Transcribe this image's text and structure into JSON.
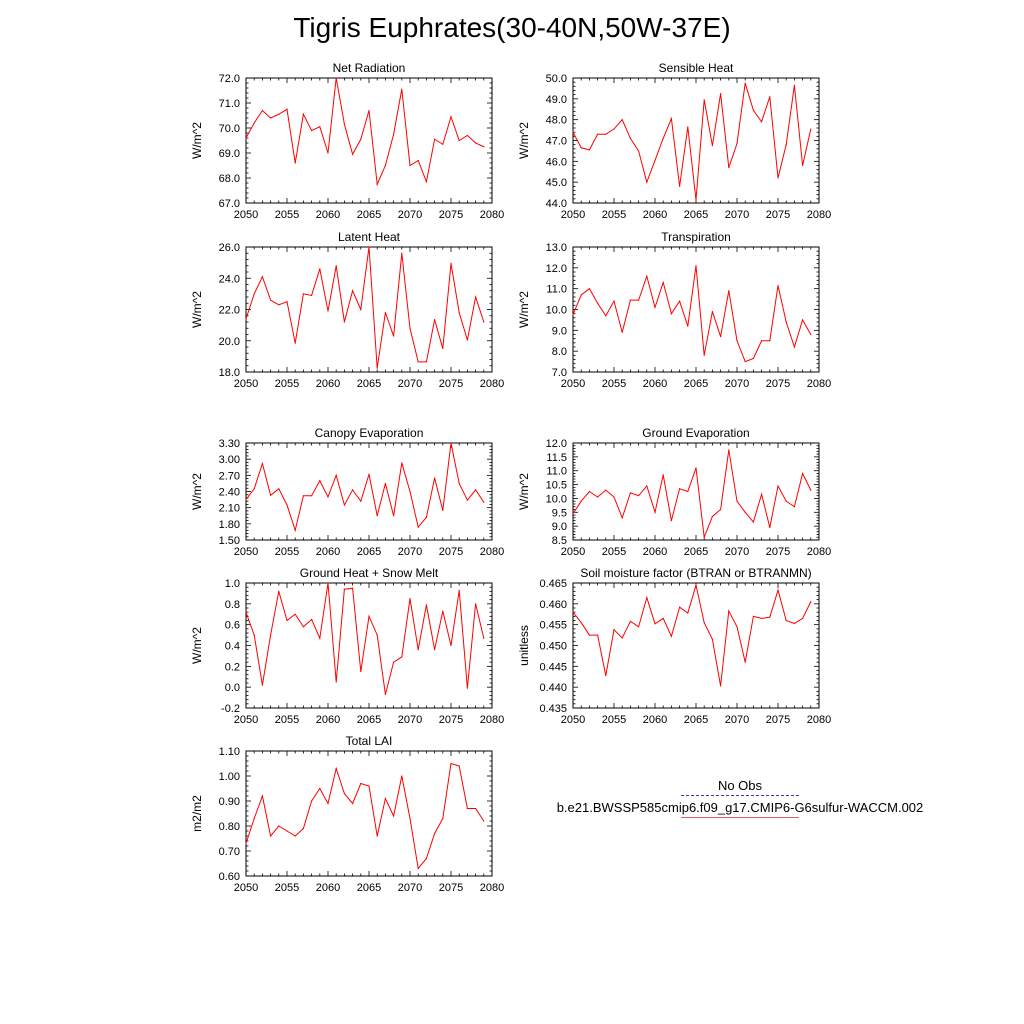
{
  "page": {
    "title": "Tigris Euphrates(30-40N,50W-37E)"
  },
  "legend": {
    "entries": [
      {
        "label": "No Obs",
        "color": "#3333aa",
        "style": "dashed"
      },
      {
        "label": "b.e21.BWSSP585cmip6.f09_g17.CMIP6-G6sulfur-WACCM.002",
        "color": "#ff0000",
        "style": "solid"
      }
    ]
  },
  "chart_data": [
    {
      "type": "line",
      "title": "Net Radiation",
      "xlabel": "",
      "ylabel": "W/m^2",
      "xlim": [
        2050,
        2080
      ],
      "ylim": [
        67.0,
        72.0
      ],
      "xticks": [
        2050,
        2055,
        2060,
        2065,
        2070,
        2075,
        2080
      ],
      "yticks": [
        67.0,
        68.0,
        69.0,
        70.0,
        71.0,
        72.0
      ],
      "decimals": 1,
      "x": [
        2050,
        2051,
        2052,
        2053,
        2054,
        2055,
        2056,
        2057,
        2058,
        2059,
        2060,
        2061,
        2062,
        2063,
        2064,
        2065,
        2066,
        2067,
        2068,
        2069,
        2070,
        2071,
        2072,
        2073,
        2074,
        2075,
        2076,
        2077,
        2078,
        2079
      ],
      "series": [
        {
          "color": "#ff0000",
          "values": [
            69.6,
            70.2,
            70.7,
            70.4,
            70.55,
            70.75,
            68.6,
            70.55,
            69.9,
            70.05,
            69.0,
            72.0,
            70.15,
            68.95,
            69.55,
            70.7,
            67.75,
            68.5,
            69.75,
            71.55,
            68.5,
            68.7,
            67.85,
            69.55,
            69.35,
            70.45,
            69.5,
            69.7,
            69.4,
            69.25
          ]
        }
      ]
    },
    {
      "type": "line",
      "title": "Sensible Heat",
      "xlabel": "",
      "ylabel": "W/m^2",
      "xlim": [
        2050,
        2080
      ],
      "ylim": [
        44.0,
        50.0
      ],
      "xticks": [
        2050,
        2055,
        2060,
        2065,
        2070,
        2075,
        2080
      ],
      "yticks": [
        44.0,
        45.0,
        46.0,
        47.0,
        48.0,
        49.0,
        50.0
      ],
      "decimals": 1,
      "x": [
        2050,
        2051,
        2052,
        2053,
        2054,
        2055,
        2056,
        2057,
        2058,
        2059,
        2060,
        2061,
        2062,
        2063,
        2064,
        2065,
        2066,
        2067,
        2068,
        2069,
        2070,
        2071,
        2072,
        2073,
        2074,
        2075,
        2076,
        2077,
        2078,
        2079
      ],
      "series": [
        {
          "color": "#ff0000",
          "values": [
            47.4,
            46.65,
            46.55,
            47.3,
            47.3,
            47.55,
            48.0,
            47.1,
            46.5,
            45.0,
            46.05,
            47.1,
            48.05,
            44.8,
            47.65,
            44.15,
            48.95,
            46.75,
            49.25,
            45.7,
            46.85,
            49.75,
            48.45,
            47.9,
            49.1,
            45.2,
            46.8,
            49.65,
            45.8,
            47.55
          ]
        }
      ]
    },
    {
      "type": "line",
      "title": "Latent Heat",
      "xlabel": "",
      "ylabel": "W/m^2",
      "xlim": [
        2050,
        2080
      ],
      "ylim": [
        18.0,
        26.0
      ],
      "xticks": [
        2050,
        2055,
        2060,
        2065,
        2070,
        2075,
        2080
      ],
      "yticks": [
        18.0,
        20.0,
        22.0,
        24.0,
        26.0
      ],
      "decimals": 1,
      "x": [
        2050,
        2051,
        2052,
        2053,
        2054,
        2055,
        2056,
        2057,
        2058,
        2059,
        2060,
        2061,
        2062,
        2063,
        2064,
        2065,
        2066,
        2067,
        2068,
        2069,
        2070,
        2071,
        2072,
        2073,
        2074,
        2075,
        2076,
        2077,
        2078,
        2079
      ],
      "series": [
        {
          "color": "#ff0000",
          "values": [
            21.4,
            23.0,
            24.1,
            22.6,
            22.3,
            22.5,
            19.85,
            23.0,
            22.9,
            24.6,
            21.9,
            24.8,
            21.2,
            23.2,
            22.0,
            26.0,
            18.25,
            21.8,
            20.3,
            25.6,
            20.8,
            18.65,
            18.65,
            21.35,
            19.5,
            24.95,
            21.8,
            20.05,
            22.8,
            21.2
          ]
        }
      ]
    },
    {
      "type": "line",
      "title": "Transpiration",
      "xlabel": "",
      "ylabel": "W/m^2",
      "xlim": [
        2050,
        2080
      ],
      "ylim": [
        7.0,
        13.0
      ],
      "xticks": [
        2050,
        2055,
        2060,
        2065,
        2070,
        2075,
        2080
      ],
      "yticks": [
        7.0,
        8.0,
        9.0,
        10.0,
        11.0,
        12.0,
        13.0
      ],
      "decimals": 1,
      "x": [
        2050,
        2051,
        2052,
        2053,
        2054,
        2055,
        2056,
        2057,
        2058,
        2059,
        2060,
        2061,
        2062,
        2063,
        2064,
        2065,
        2066,
        2067,
        2068,
        2069,
        2070,
        2071,
        2072,
        2073,
        2074,
        2075,
        2076,
        2077,
        2078,
        2079
      ],
      "series": [
        {
          "color": "#ff0000",
          "values": [
            9.75,
            10.7,
            11.0,
            10.3,
            9.7,
            10.4,
            8.9,
            10.45,
            10.45,
            11.6,
            10.1,
            11.3,
            9.8,
            10.4,
            9.2,
            12.1,
            7.8,
            9.9,
            8.7,
            10.9,
            8.5,
            7.5,
            7.65,
            8.5,
            8.5,
            11.15,
            9.4,
            8.2,
            9.5,
            8.8
          ]
        }
      ]
    },
    {
      "type": "line",
      "title": "Canopy Evaporation",
      "xlabel": "",
      "ylabel": "W/m^2",
      "xlim": [
        2050,
        2080
      ],
      "ylim": [
        1.5,
        3.3
      ],
      "xticks": [
        2050,
        2055,
        2060,
        2065,
        2070,
        2075,
        2080
      ],
      "yticks": [
        1.5,
        1.8,
        2.1,
        2.4,
        2.7,
        3.0,
        3.3
      ],
      "decimals": 2,
      "x": [
        2050,
        2051,
        2052,
        2053,
        2054,
        2055,
        2056,
        2057,
        2058,
        2059,
        2060,
        2061,
        2062,
        2063,
        2064,
        2065,
        2066,
        2067,
        2068,
        2069,
        2070,
        2071,
        2072,
        2073,
        2074,
        2075,
        2076,
        2077,
        2078,
        2079
      ],
      "series": [
        {
          "color": "#ff0000",
          "values": [
            2.25,
            2.45,
            2.92,
            2.33,
            2.45,
            2.15,
            1.68,
            2.32,
            2.32,
            2.6,
            2.3,
            2.7,
            2.15,
            2.43,
            2.22,
            2.72,
            1.95,
            2.55,
            1.95,
            2.93,
            2.4,
            1.74,
            1.92,
            2.65,
            2.05,
            3.3,
            2.55,
            2.24,
            2.43,
            2.2
          ]
        }
      ]
    },
    {
      "type": "line",
      "title": "Ground Evaporation",
      "xlabel": "",
      "ylabel": "W/m^2",
      "xlim": [
        2050,
        2080
      ],
      "ylim": [
        8.5,
        12.0
      ],
      "xticks": [
        2050,
        2055,
        2060,
        2065,
        2070,
        2075,
        2080
      ],
      "yticks": [
        8.5,
        9.0,
        9.5,
        10.0,
        10.5,
        11.0,
        11.5,
        12.0
      ],
      "decimals": 1,
      "x": [
        2050,
        2051,
        2052,
        2053,
        2054,
        2055,
        2056,
        2057,
        2058,
        2059,
        2060,
        2061,
        2062,
        2063,
        2064,
        2065,
        2066,
        2067,
        2068,
        2069,
        2070,
        2071,
        2072,
        2073,
        2074,
        2075,
        2076,
        2077,
        2078,
        2079
      ],
      "series": [
        {
          "color": "#ff0000",
          "values": [
            9.45,
            9.9,
            10.25,
            10.05,
            10.3,
            10.05,
            9.3,
            10.2,
            10.1,
            10.45,
            9.5,
            10.85,
            9.2,
            10.35,
            10.25,
            11.1,
            8.6,
            9.35,
            9.6,
            11.75,
            9.9,
            9.5,
            9.15,
            10.15,
            8.95,
            10.45,
            9.9,
            9.7,
            10.9,
            10.3
          ]
        }
      ]
    },
    {
      "type": "line",
      "title": "Ground Heat + Snow Melt",
      "xlabel": "",
      "ylabel": "W/m^2",
      "xlim": [
        2050,
        2080
      ],
      "ylim": [
        -0.2,
        1.0
      ],
      "xticks": [
        2050,
        2055,
        2060,
        2065,
        2070,
        2075,
        2080
      ],
      "yticks": [
        -0.2,
        0.0,
        0.2,
        0.4,
        0.6,
        0.8,
        1.0
      ],
      "decimals": 1,
      "x": [
        2050,
        2051,
        2052,
        2053,
        2054,
        2055,
        2056,
        2057,
        2058,
        2059,
        2060,
        2061,
        2062,
        2063,
        2064,
        2065,
        2066,
        2067,
        2068,
        2069,
        2070,
        2071,
        2072,
        2073,
        2074,
        2075,
        2076,
        2077,
        2078,
        2079
      ],
      "series": [
        {
          "color": "#ff0000",
          "values": [
            0.72,
            0.5,
            0.02,
            0.5,
            0.92,
            0.64,
            0.7,
            0.58,
            0.65,
            0.47,
            1.0,
            0.05,
            0.94,
            0.95,
            0.15,
            0.68,
            0.5,
            -0.07,
            0.24,
            0.29,
            0.85,
            0.36,
            0.79,
            0.36,
            0.73,
            0.4,
            0.93,
            -0.01,
            0.8,
            0.47
          ]
        }
      ]
    },
    {
      "type": "line",
      "title": "Soil moisture factor (BTRAN or BTRANMN)",
      "xlabel": "",
      "ylabel": "unitless",
      "xlim": [
        2050,
        2080
      ],
      "ylim": [
        0.435,
        0.465
      ],
      "xticks": [
        2050,
        2055,
        2060,
        2065,
        2070,
        2075,
        2080
      ],
      "yticks": [
        0.435,
        0.44,
        0.445,
        0.45,
        0.455,
        0.46,
        0.465
      ],
      "decimals": 3,
      "x": [
        2050,
        2051,
        2052,
        2053,
        2054,
        2055,
        2056,
        2057,
        2058,
        2059,
        2060,
        2061,
        2062,
        2063,
        2064,
        2065,
        2066,
        2067,
        2068,
        2069,
        2070,
        2071,
        2072,
        2073,
        2074,
        2075,
        2076,
        2077,
        2078,
        2079
      ],
      "series": [
        {
          "color": "#ff0000",
          "values": [
            0.458,
            0.4555,
            0.4525,
            0.4525,
            0.4428,
            0.4538,
            0.4518,
            0.4558,
            0.4545,
            0.4615,
            0.4552,
            0.4565,
            0.4522,
            0.4592,
            0.4578,
            0.4645,
            0.4555,
            0.4515,
            0.4403,
            0.4583,
            0.4545,
            0.446,
            0.457,
            0.4565,
            0.4568,
            0.4633,
            0.456,
            0.4553,
            0.4565,
            0.4605
          ]
        }
      ]
    },
    {
      "type": "line",
      "title": "Total LAI",
      "xlabel": "",
      "ylabel": "m2/m2",
      "xlim": [
        2050,
        2080
      ],
      "ylim": [
        0.6,
        1.1
      ],
      "xticks": [
        2050,
        2055,
        2060,
        2065,
        2070,
        2075,
        2080
      ],
      "yticks": [
        0.6,
        0.7,
        0.8,
        0.9,
        1.0,
        1.1
      ],
      "decimals": 2,
      "x": [
        2050,
        2051,
        2052,
        2053,
        2054,
        2055,
        2056,
        2057,
        2058,
        2059,
        2060,
        2061,
        2062,
        2063,
        2064,
        2065,
        2066,
        2067,
        2068,
        2069,
        2070,
        2071,
        2072,
        2073,
        2074,
        2075,
        2076,
        2077,
        2078,
        2079
      ],
      "series": [
        {
          "color": "#ff0000",
          "values": [
            0.73,
            0.83,
            0.92,
            0.76,
            0.8,
            0.78,
            0.76,
            0.79,
            0.9,
            0.95,
            0.89,
            1.03,
            0.93,
            0.89,
            0.97,
            0.96,
            0.76,
            0.91,
            0.84,
            1.0,
            0.83,
            0.63,
            0.67,
            0.77,
            0.83,
            1.05,
            1.04,
            0.87,
            0.87,
            0.82
          ]
        }
      ]
    }
  ]
}
